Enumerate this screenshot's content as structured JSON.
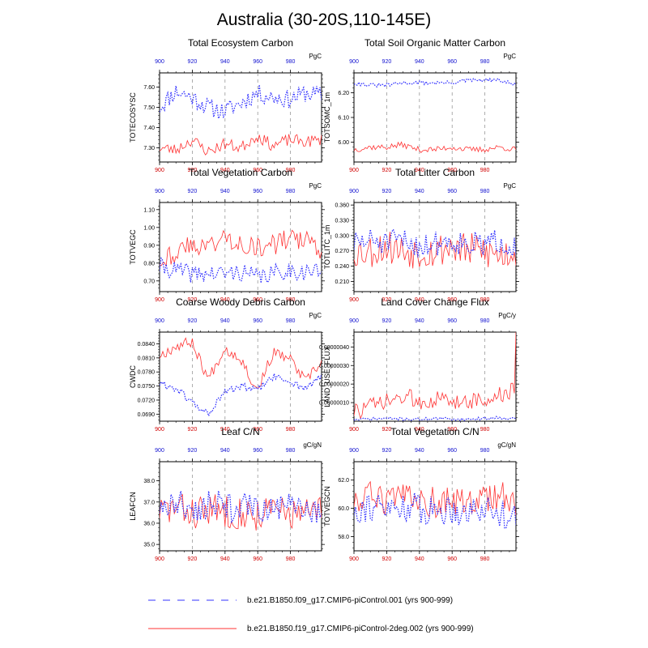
{
  "figure": {
    "title": "Australia (30-20S,110-145E)",
    "top_axis_color": "#1a1aff",
    "bottom_axis_color": "#ff1a1a"
  },
  "legend": {
    "series_blue": "b.e21.B1850.f09_g17.CMIP6-piControl.001 (yrs 900-999)",
    "series_red": "b.e21.B1850.f19_g17.CMIP6-piControl-2deg.002 (yrs 900-999)",
    "color_blue": "#3333ff",
    "color_red": "#ff3333"
  },
  "chart_data": [
    {
      "type": "line",
      "title": "Total Ecosystem Carbon",
      "ylabel": "TOTECOSYSC",
      "units": "PgC",
      "xlim": [
        900,
        999
      ],
      "ylim": [
        7.23,
        7.67
      ],
      "yticks": [
        "7.30",
        "7.40",
        "7.50",
        "7.60"
      ],
      "xticks": [
        "900",
        "920",
        "940",
        "960",
        "980"
      ],
      "series": [
        {
          "name": "blue",
          "seed": 11,
          "base": [
            7.5,
            7.58,
            7.55,
            7.5,
            7.48,
            7.52,
            7.57,
            7.55,
            7.54,
            7.57,
            7.56
          ],
          "noise": 0.045
        },
        {
          "name": "red",
          "seed": 23,
          "base": [
            7.3,
            7.29,
            7.34,
            7.28,
            7.32,
            7.3,
            7.36,
            7.31,
            7.34,
            7.33,
            7.34
          ],
          "noise": 0.03
        }
      ]
    },
    {
      "type": "line",
      "title": "Total Soil Organic Matter Carbon",
      "ylabel": "TOTSOMC_1m",
      "units": "PgC",
      "xlim": [
        900,
        999
      ],
      "ylim": [
        5.92,
        6.28
      ],
      "yticks": [
        "6.00",
        "6.10",
        "6.20"
      ],
      "xticks": [
        "900",
        "920",
        "940",
        "960",
        "980"
      ],
      "series": [
        {
          "name": "blue",
          "seed": 31,
          "base": [
            6.24,
            6.23,
            6.23,
            6.24,
            6.24,
            6.24,
            6.24,
            6.25,
            6.25,
            6.25,
            6.23
          ],
          "noise": 0.008
        },
        {
          "name": "red",
          "seed": 37,
          "base": [
            5.97,
            5.98,
            5.98,
            5.99,
            5.97,
            5.97,
            5.98,
            5.97,
            5.97,
            5.98,
            5.97
          ],
          "noise": 0.012
        }
      ]
    },
    {
      "type": "line",
      "title": "Total Vegetation Carbon",
      "ylabel": "TOTVEGC",
      "units": "PgC",
      "xlim": [
        900,
        999
      ],
      "ylim": [
        0.64,
        1.14
      ],
      "yticks": [
        "0.70",
        "0.80",
        "0.90",
        "1.00",
        "1.10"
      ],
      "xticks": [
        "900",
        "920",
        "940",
        "960",
        "980"
      ],
      "series": [
        {
          "name": "blue",
          "seed": 41,
          "base": [
            0.78,
            0.76,
            0.74,
            0.74,
            0.74,
            0.75,
            0.72,
            0.74,
            0.76,
            0.75,
            0.76
          ],
          "noise": 0.05
        },
        {
          "name": "red",
          "seed": 43,
          "base": [
            0.82,
            0.86,
            0.9,
            0.9,
            0.94,
            0.92,
            0.88,
            0.9,
            0.94,
            0.92,
            0.88
          ],
          "noise": 0.06
        }
      ]
    },
    {
      "type": "line",
      "title": "Total Litter Carbon",
      "ylabel": "TOTLITC_1m",
      "units": "PgC",
      "xlim": [
        900,
        999
      ],
      "ylim": [
        0.19,
        0.365
      ],
      "yticks": [
        "0.210",
        "0.240",
        "0.270",
        "0.300",
        "0.330",
        "0.360"
      ],
      "xticks": [
        "900",
        "920",
        "940",
        "960",
        "980"
      ],
      "series": [
        {
          "name": "blue",
          "seed": 51,
          "base": [
            0.285,
            0.29,
            0.285,
            0.29,
            0.28,
            0.285,
            0.29,
            0.285,
            0.28,
            0.29,
            0.28
          ],
          "noise": 0.025
        },
        {
          "name": "red",
          "seed": 53,
          "base": [
            0.27,
            0.27,
            0.28,
            0.27,
            0.27,
            0.27,
            0.28,
            0.27,
            0.27,
            0.26,
            0.27
          ],
          "noise": 0.035
        }
      ]
    },
    {
      "type": "line",
      "title": "Coarse Woody Debris Carbon",
      "ylabel": "CWDC",
      "units": "PgC",
      "xlim": [
        900,
        999
      ],
      "ylim": [
        0.0675,
        0.0865
      ],
      "yticks": [
        "0.0690",
        "0.0720",
        "0.0750",
        "0.0780",
        "0.0810",
        "0.0840"
      ],
      "xticks": [
        "900",
        "920",
        "940",
        "960",
        "980"
      ],
      "series": [
        {
          "name": "blue",
          "seed": 61,
          "base": [
            0.0755,
            0.0745,
            0.0715,
            0.069,
            0.0735,
            0.075,
            0.074,
            0.077,
            0.076,
            0.0745,
            0.077
          ],
          "noise": 0.0008
        },
        {
          "name": "red",
          "seed": 67,
          "base": [
            0.0815,
            0.0835,
            0.0845,
            0.0765,
            0.083,
            0.081,
            0.074,
            0.082,
            0.081,
            0.076,
            0.08
          ],
          "noise": 0.0012
        }
      ]
    },
    {
      "type": "line",
      "title": "Land Cover Change Flux",
      "ylabel": "LAND_USE_FLUX",
      "units": "PgC/y",
      "xlim": [
        900,
        999
      ],
      "ylim": [
        0.0,
        4.8e-07
      ],
      "yticks": [
        "0.00000010",
        "0.00000020",
        "0.00000030",
        "0.00000040"
      ],
      "xticks": [
        "900",
        "920",
        "940",
        "960",
        "980"
      ],
      "series": [
        {
          "name": "blue",
          "seed": 71,
          "base": [
            8e-09,
            1.2e-08,
            1.5e-08,
            1.2e-08,
            1e-08,
            1.5e-08,
            1.2e-08,
            1e-08,
            1.5e-08,
            2e-08,
            1.2e-08
          ],
          "noise": 8e-09
        },
        {
          "name": "red",
          "seed": 73,
          "base": [
            5e-08,
            8e-08,
            1e-07,
            1.3e-07,
            1.1e-07,
            1.2e-07,
            1e-07,
            1.2e-07,
            1e-07,
            1.4e-07,
            1.6e-07
          ],
          "noise": 5e-08,
          "spike_end": 4.8e-07
        }
      ]
    },
    {
      "type": "line",
      "title": "Leaf C/N",
      "ylabel": "LEAFCN",
      "units": "gC/gN",
      "xlim": [
        900,
        999
      ],
      "ylim": [
        34.7,
        38.9
      ],
      "yticks": [
        "35.0",
        "36.0",
        "37.0",
        "38.0"
      ],
      "xticks": [
        "900",
        "920",
        "940",
        "960",
        "980"
      ],
      "series": [
        {
          "name": "blue",
          "seed": 81,
          "base": [
            36.8,
            36.9,
            36.7,
            36.9,
            36.8,
            36.7,
            36.8,
            36.6,
            36.7,
            36.6,
            36.7
          ],
          "noise": 0.7
        },
        {
          "name": "red",
          "seed": 83,
          "base": [
            36.6,
            36.7,
            36.5,
            36.6,
            36.6,
            36.5,
            36.4,
            36.6,
            36.5,
            36.4,
            36.6
          ],
          "noise": 0.8
        }
      ]
    },
    {
      "type": "line",
      "title": "Total Vegetation C/N",
      "ylabel": "TOTVEGCN",
      "units": "gC/gN",
      "xlim": [
        900,
        999
      ],
      "ylim": [
        57.0,
        63.3
      ],
      "yticks": [
        "58.0",
        "60.0",
        "62.0"
      ],
      "xticks": [
        "900",
        "920",
        "940",
        "960",
        "980"
      ],
      "series": [
        {
          "name": "blue",
          "seed": 91,
          "base": [
            60.0,
            60.2,
            59.8,
            60.2,
            60.0,
            59.8,
            60.0,
            59.8,
            60.0,
            59.6,
            59.8
          ],
          "noise": 1.1
        },
        {
          "name": "red",
          "seed": 93,
          "base": [
            60.6,
            60.8,
            60.4,
            60.6,
            60.6,
            60.4,
            60.4,
            60.6,
            60.6,
            60.8,
            60.6
          ],
          "noise": 1.1
        }
      ]
    }
  ]
}
